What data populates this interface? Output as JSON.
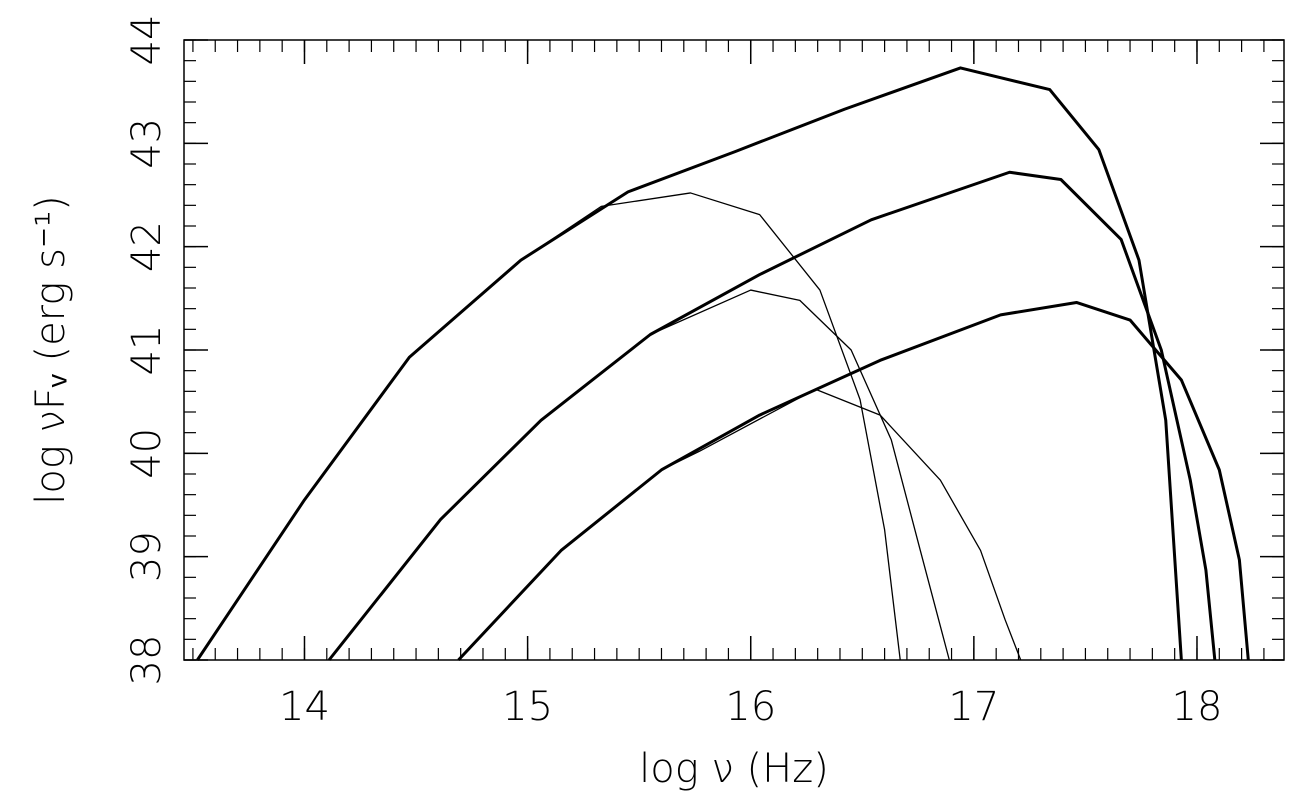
{
  "chart_data": {
    "type": "line",
    "xlabel": "log ν (Hz)",
    "ylabel": "log νFᵥ (erg s⁻¹)",
    "xlim": [
      13.46,
      18.39
    ],
    "ylim": [
      38,
      44
    ],
    "xticks": [
      14,
      15,
      16,
      17,
      18
    ],
    "yticks": [
      38,
      39,
      40,
      41,
      42,
      43,
      44
    ],
    "minor_divisions": {
      "x": 10,
      "y": 5
    },
    "series": [
      {
        "color": "#000000",
        "line_width": 3,
        "x": [
          13.52,
          14.0,
          14.47,
          14.97,
          15.45,
          15.93,
          16.42,
          16.94,
          17.34,
          17.56,
          17.74,
          17.86,
          17.93
        ],
        "values": [
          38,
          39.55,
          40.93,
          41.87,
          42.53,
          42.92,
          43.33,
          43.73,
          43.52,
          42.94,
          41.87,
          40.32,
          38
        ]
      },
      {
        "color": "#000000",
        "line_width": 3,
        "x": [
          14.11,
          14.61,
          15.06,
          15.55,
          16.04,
          16.54,
          17.16,
          17.39,
          17.66,
          17.84,
          17.97,
          18.04,
          18.08
        ],
        "values": [
          38,
          39.36,
          40.32,
          41.15,
          41.73,
          42.26,
          42.72,
          42.65,
          42.07,
          41.0,
          39.74,
          38.87,
          38
        ]
      },
      {
        "color": "#000000",
        "line_width": 3,
        "x": [
          14.69,
          15.15,
          15.6,
          16.04,
          16.58,
          17.12,
          17.46,
          17.7,
          17.93,
          18.1,
          18.19,
          18.23
        ],
        "values": [
          38,
          39.06,
          39.84,
          40.37,
          40.9,
          41.34,
          41.46,
          41.29,
          40.71,
          39.84,
          38.97,
          38
        ]
      },
      {
        "color": "#000000",
        "line_width": 1.3,
        "x": [
          13.52,
          14.0,
          14.47,
          14.97,
          15.33,
          15.73,
          16.04,
          16.31,
          16.49,
          16.6,
          16.67
        ],
        "values": [
          38,
          39.55,
          40.93,
          41.87,
          42.39,
          42.52,
          42.31,
          41.58,
          40.52,
          39.26,
          38
        ]
      },
      {
        "color": "#000000",
        "line_width": 1.3,
        "x": [
          14.11,
          14.61,
          15.06,
          15.55,
          16.0,
          16.22,
          16.45,
          16.63,
          16.76,
          16.89
        ],
        "values": [
          38,
          39.36,
          40.32,
          41.15,
          41.58,
          41.48,
          41.0,
          40.13,
          39.06,
          38
        ]
      },
      {
        "color": "#000000",
        "line_width": 1.3,
        "x": [
          14.69,
          15.15,
          15.6,
          15.77,
          16.29,
          16.58,
          16.85,
          17.03,
          17.14,
          17.21
        ],
        "values": [
          38,
          39.06,
          39.84,
          40.02,
          40.62,
          40.37,
          39.74,
          39.06,
          38.39,
          38
        ]
      }
    ]
  }
}
